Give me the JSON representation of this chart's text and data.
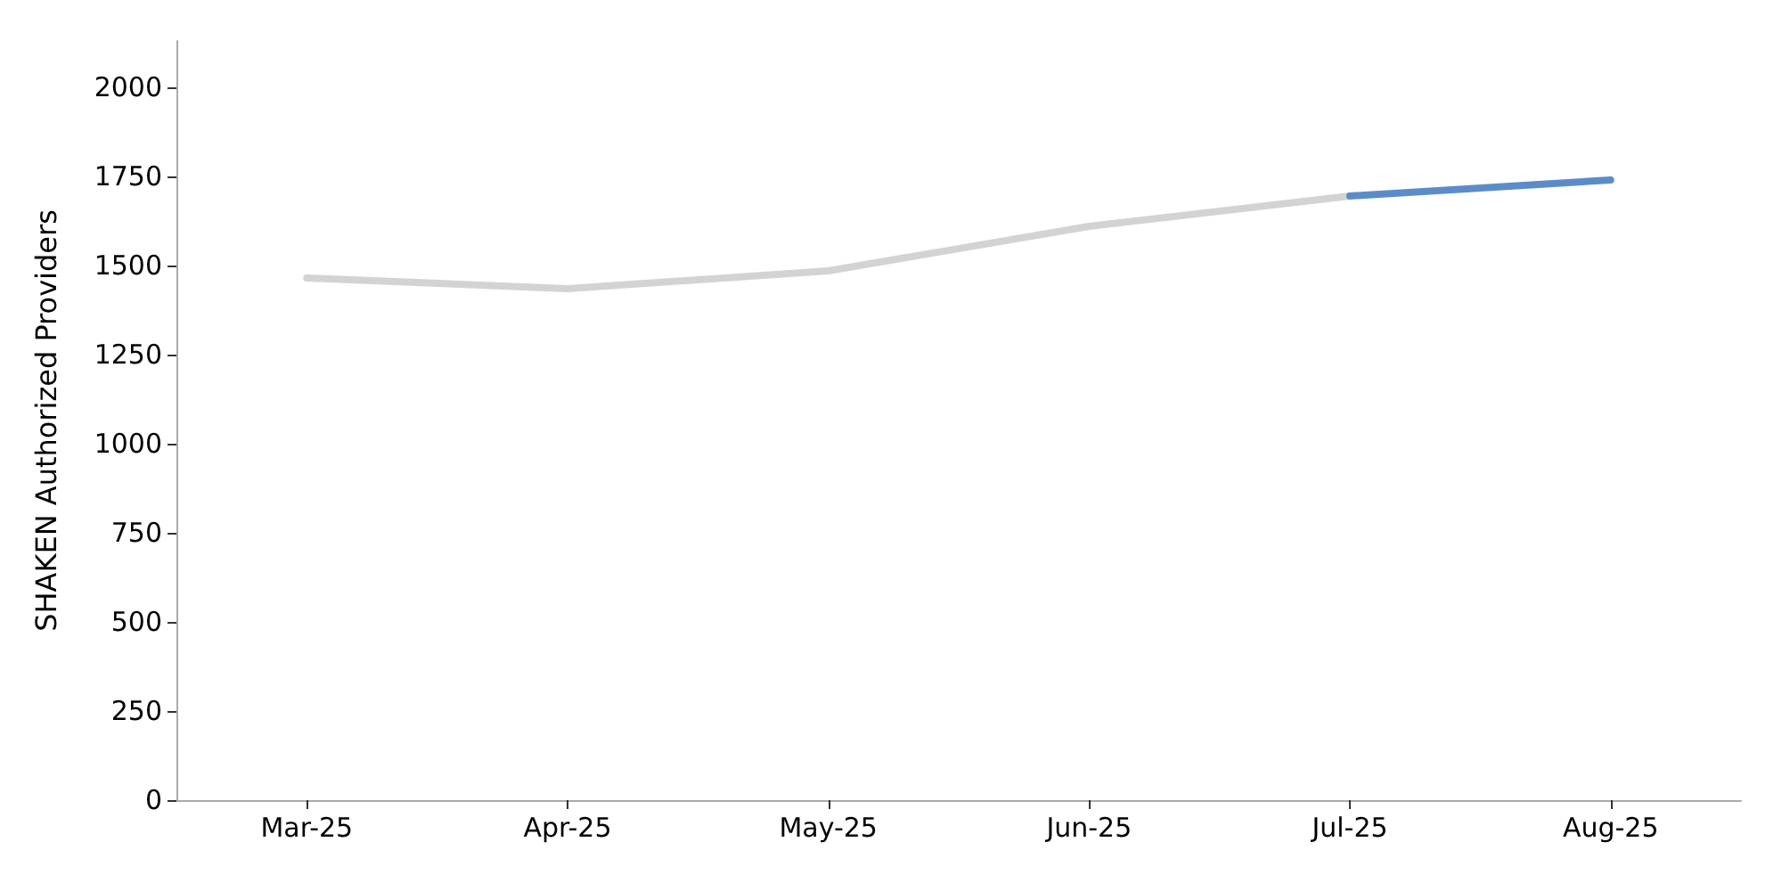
{
  "chart_data": {
    "type": "line",
    "ylabel": "SHAKEN Authorized Providers",
    "categories": [
      "Mar-25",
      "Apr-25",
      "May-25",
      "Jun-25",
      "Jul-25",
      "Aug-25"
    ],
    "series": [
      {
        "color": "#d3d3d3",
        "values": [
          1465,
          1435,
          1485,
          1610,
          1695,
          null
        ]
      },
      {
        "color": "#5b8cc8",
        "values": [
          null,
          null,
          null,
          null,
          1695,
          1740
        ]
      }
    ],
    "ylim": [
      0,
      2130
    ],
    "yticks": [
      0,
      250,
      500,
      750,
      1000,
      1250,
      1500,
      1750,
      2000
    ],
    "grid": false,
    "marker": "none",
    "line_style": "solid"
  }
}
